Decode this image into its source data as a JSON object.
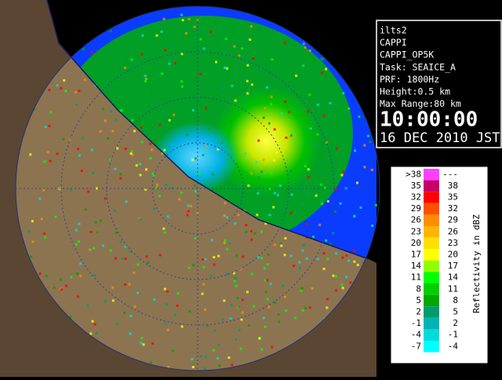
{
  "info": {
    "lines": [
      "ilts2",
      "CAPPI",
      "CAPPI_OP5K",
      "Task: SEAICE_A",
      "PRF: 1800Hz",
      "Height:0.5 km",
      "Max Range:80 km"
    ],
    "time": "10:00:00",
    "date": "16 DEC 2010 JST"
  },
  "legend": {
    "title": "Reflectivity in dBZ",
    "rows": [
      {
        "low": ">38",
        "high": "---",
        "color": "#ff40ff"
      },
      {
        "low": "35",
        "high": "38",
        "color": "#c8006a"
      },
      {
        "low": "32",
        "high": "35",
        "color": "#ff0000"
      },
      {
        "low": "29",
        "high": "32",
        "color": "#ff5000"
      },
      {
        "low": "26",
        "high": "29",
        "color": "#ff8c00"
      },
      {
        "low": "23",
        "high": "26",
        "color": "#ffb400"
      },
      {
        "low": "20",
        "high": "23",
        "color": "#ffe000"
      },
      {
        "low": "17",
        "high": "20",
        "color": "#ffff00"
      },
      {
        "low": "14",
        "high": "17",
        "color": "#90ff00"
      },
      {
        "low": "11",
        "high": "14",
        "color": "#00ff00"
      },
      {
        "low": "8",
        "high": "11",
        "color": "#00d000"
      },
      {
        "low": "5",
        "high": "8",
        "color": "#00a800"
      },
      {
        "low": "2",
        "high": "5",
        "color": "#009c6c"
      },
      {
        "low": "-1",
        "high": "2",
        "color": "#00b4b4"
      },
      {
        "low": "-4",
        "high": "-1",
        "color": "#00dcdc"
      },
      {
        "low": "-7",
        "high": "-4",
        "color": "#00ffff"
      }
    ]
  }
}
